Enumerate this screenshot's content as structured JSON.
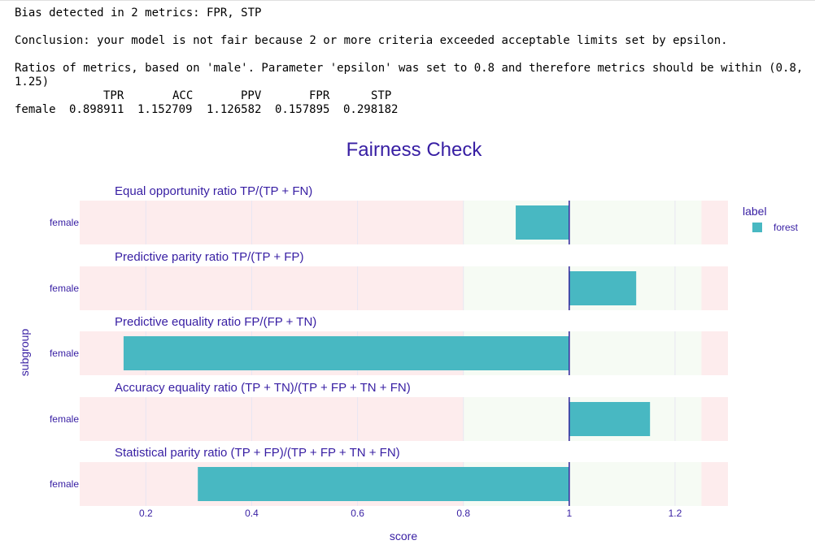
{
  "console": {
    "bias_line": "Bias detected in 2 metrics: FPR, STP",
    "conclusion_line": "Conclusion: your model is not fair because 2 or more criteria exceeded acceptable limits set by epsilon.",
    "ratios_line_1": "Ratios of metrics, based on 'male'. Parameter 'epsilon' was set to 0.8 and therefore metrics should be within (0.8,",
    "ratios_line_2": "1.25)"
  },
  "ratio_table": {
    "columns": [
      "TPR",
      "ACC",
      "PPV",
      "FPR",
      "STP"
    ],
    "row_label": "female",
    "values": [
      "0.898911",
      "1.152709",
      "1.126582",
      "0.157895",
      "0.298182"
    ]
  },
  "chart_data": {
    "type": "bar",
    "orientation": "horizontal",
    "title": "Fairness Check",
    "xlabel": "score",
    "ylabel": "subgroup",
    "xlim": [
      0.075,
      1.3
    ],
    "xticks": [
      "0.2",
      "0.4",
      "0.6",
      "0.8",
      "1",
      "1.2"
    ],
    "baseline": 1,
    "acceptable_range": [
      0.8,
      1.25
    ],
    "legend": {
      "title": "label",
      "placement": "right",
      "entries": [
        {
          "name": "forest",
          "color": "#48b8c2"
        }
      ]
    },
    "colors": {
      "bar": "#48b8c2",
      "red_zone": "#fdeced",
      "green_zone": "#f6fbf4",
      "reference_line": "#3a2fa0",
      "title": "#371ea3"
    },
    "panels": [
      {
        "metric": "Equal opportunity ratio",
        "formula": "TP/(TP + FN)",
        "category": "female",
        "value": 0.898911,
        "series": "forest"
      },
      {
        "metric": "Predictive parity ratio",
        "formula": "TP/(TP + FP)",
        "category": "female",
        "value": 1.126582,
        "series": "forest"
      },
      {
        "metric": "Predictive equality ratio",
        "formula": "FP/(FP + TN)",
        "category": "female",
        "value": 0.157895,
        "series": "forest"
      },
      {
        "metric": "Accuracy equality ratio",
        "formula": "(TP + TN)/(TP + FP + TN + FN)",
        "category": "female",
        "value": 1.152709,
        "series": "forest"
      },
      {
        "metric": "Statistical parity ratio",
        "formula": "(TP + FP)/(TP + FP + TN + FN)",
        "category": "female",
        "value": 0.298182,
        "series": "forest"
      }
    ]
  }
}
